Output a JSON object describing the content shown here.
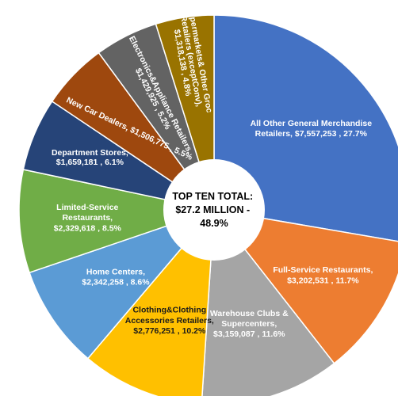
{
  "chart_data": {
    "type": "pie",
    "style": "donut",
    "center_text": [
      "TOP TEN TOTAL:",
      "$27.2 MILLION -",
      "48.9%"
    ],
    "slices": [
      {
        "label": [
          "All Other General Merchandise",
          "Retailers, $7,557,253 , 27.7%"
        ],
        "value": 7557253,
        "percent": 27.7,
        "color": "#4472C4",
        "label_color": "#ffffff"
      },
      {
        "label": [
          "Full-Service Restaurants,",
          "$3,202,531 , 11.7%"
        ],
        "value": 3202531,
        "percent": 11.7,
        "color": "#ED7D31",
        "label_color": "#ffffff"
      },
      {
        "label": [
          "Warehouse Clubs &",
          "Supercenters,",
          "$3,159,087 , 11.6%"
        ],
        "value": 3159087,
        "percent": 11.6,
        "color": "#A5A5A5",
        "label_color": "#ffffff"
      },
      {
        "label": [
          "Clothing&Clothing",
          "Accessories Retailers,",
          "$2,776,251 , 10.2%"
        ],
        "value": 2776251,
        "percent": 10.2,
        "color": "#FFC000",
        "label_color": "#1a1a1a"
      },
      {
        "label": [
          "Home Centers,",
          "$2,342,258 , 8.6%"
        ],
        "value": 2342258,
        "percent": 8.6,
        "color": "#5B9BD5",
        "label_color": "#ffffff"
      },
      {
        "label": [
          "Limited-Service",
          "Restaurants,",
          "$2,329,618 , 8.5%"
        ],
        "value": 2329618,
        "percent": 8.5,
        "color": "#70AD47",
        "label_color": "#ffffff"
      },
      {
        "label": [
          "Department Stores,",
          "$1,659,181 , 6.1%"
        ],
        "value": 1659181,
        "percent": 6.1,
        "color": "#264478",
        "label_color": "#ffffff"
      },
      {
        "label": [
          "New Car Dealers, $1,506,775 , 5.5%"
        ],
        "value": 1506775,
        "percent": 5.5,
        "color": "#9E480E",
        "label_color": "#ffffff"
      },
      {
        "label": [
          "Electronics&Appliance Retailers,",
          "$1,429,925 , 5.2%"
        ],
        "value": 1429925,
        "percent": 5.2,
        "color": "#636363",
        "label_color": "#ffffff"
      },
      {
        "label": [
          "Supermarkets& Other Groc",
          "Retailers (exceptConv),",
          "$1,318,138 , 4.8%"
        ],
        "value": 1318138,
        "percent": 4.8,
        "color": "#997300",
        "label_color": "#ffffff"
      }
    ]
  }
}
